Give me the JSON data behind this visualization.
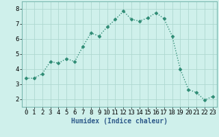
{
  "x": [
    0,
    1,
    2,
    3,
    4,
    5,
    6,
    7,
    8,
    9,
    10,
    11,
    12,
    13,
    14,
    15,
    16,
    17,
    18,
    19,
    20,
    21,
    22,
    23
  ],
  "y": [
    3.4,
    3.4,
    3.7,
    4.5,
    4.4,
    4.7,
    4.5,
    5.5,
    6.4,
    6.2,
    6.8,
    7.3,
    7.85,
    7.3,
    7.2,
    7.4,
    7.75,
    7.35,
    6.2,
    4.0,
    2.65,
    2.45,
    1.95,
    2.2
  ],
  "line_color": "#2e8b74",
  "marker": "D",
  "marker_size": 2.5,
  "bg_color": "#cff0eb",
  "grid_color": "#aed8d0",
  "xlabel": "Humidex (Indice chaleur)",
  "xlabel_fontsize": 7,
  "tick_fontsize": 6.5,
  "ylim": [
    1.5,
    8.5
  ],
  "xlim": [
    -0.5,
    23.5
  ],
  "yticks": [
    2,
    3,
    4,
    5,
    6,
    7,
    8
  ],
  "xticks": [
    0,
    1,
    2,
    3,
    4,
    5,
    6,
    7,
    8,
    9,
    10,
    11,
    12,
    13,
    14,
    15,
    16,
    17,
    18,
    19,
    20,
    21,
    22,
    23
  ],
  "line_width": 1.0
}
